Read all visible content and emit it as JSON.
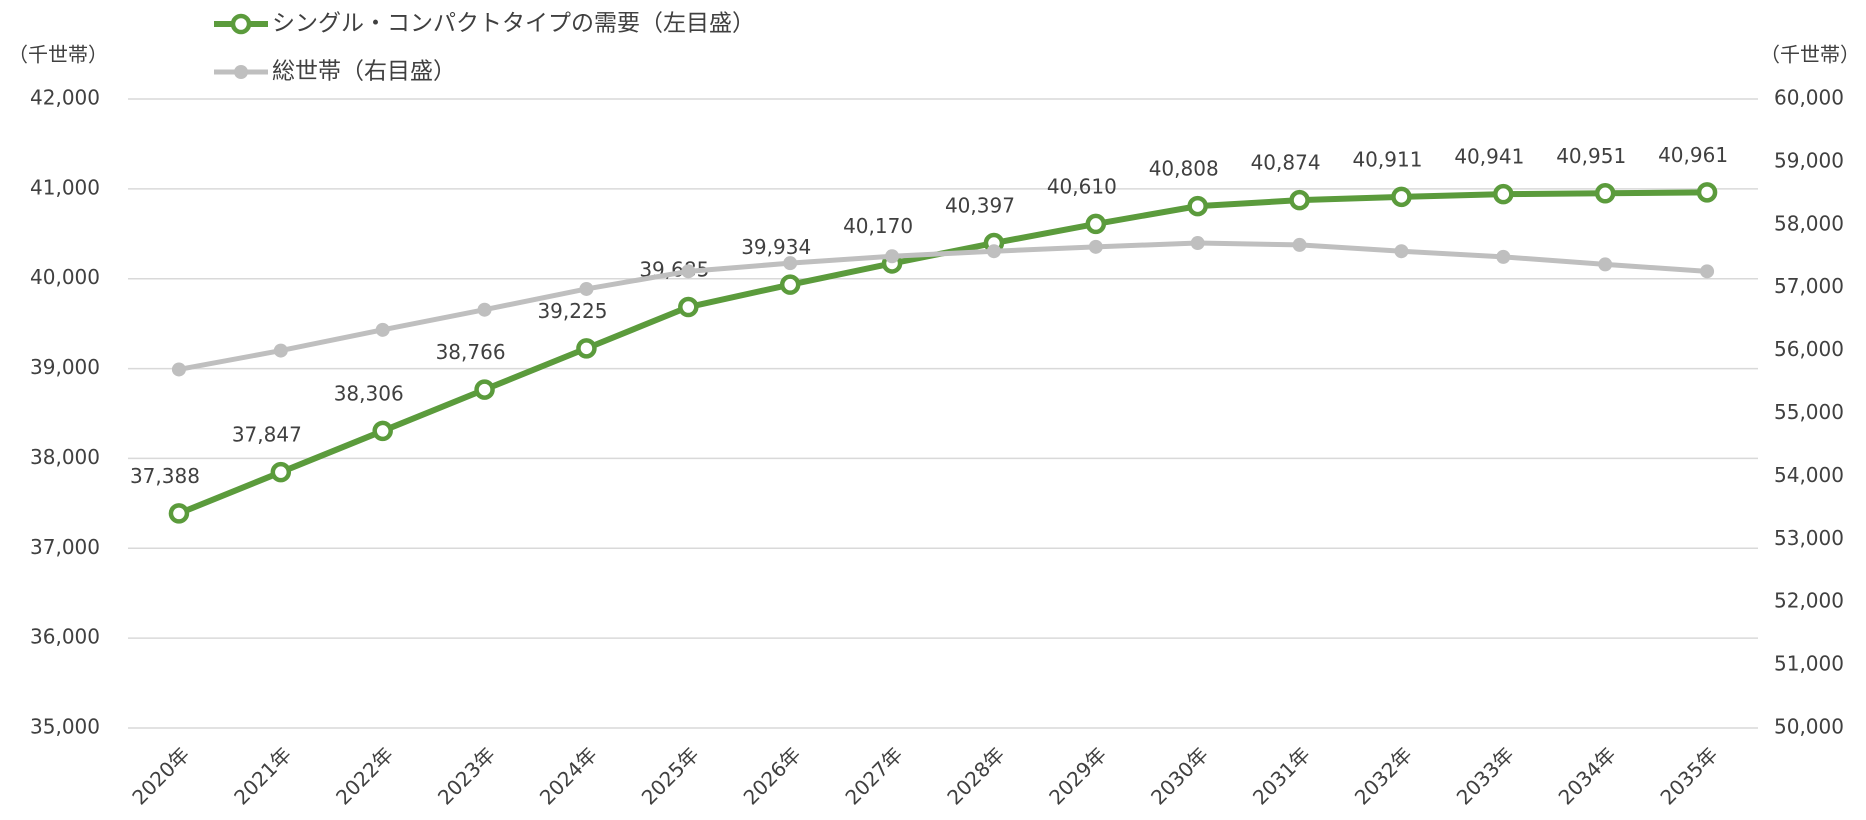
{
  "chart_data": {
    "type": "line",
    "categories": [
      "2020年",
      "2021年",
      "2022年",
      "2023年",
      "2024年",
      "2025年",
      "2026年",
      "2027年",
      "2028年",
      "2029年",
      "2030年",
      "2031年",
      "2032年",
      "2033年",
      "2034年",
      "2035年"
    ],
    "series": [
      {
        "name": "シングル・コンパクトタイプの需要（左目盛）",
        "color": "#5b9b3c",
        "axis": "y",
        "values": [
          37388,
          37847,
          38306,
          38766,
          39225,
          39685,
          39934,
          40170,
          40397,
          40610,
          40808,
          40874,
          40911,
          40941,
          40951,
          40961
        ],
        "value_labels": [
          "37,388",
          "37,847",
          "38,306",
          "38,766",
          "39,225",
          "39,685",
          "39,934",
          "40,170",
          "40,397",
          "40,610",
          "40,808",
          "40,874",
          "40,911",
          "40,941",
          "40,951",
          "40,961"
        ]
      },
      {
        "name": "総世帯（右目盛）",
        "color": "#bfbfbf",
        "axis": "y2",
        "values": [
          55700,
          56000,
          56330,
          56650,
          56980,
          57260,
          57390,
          57500,
          57580,
          57650,
          57710,
          57680,
          57580,
          57490,
          57370,
          57260
        ]
      }
    ],
    "ylabel": "（千世帯）",
    "y2label": "（千世帯）",
    "ylim": [
      35000,
      42000
    ],
    "yticks": [
      {
        "value": 35000,
        "label": "35,000"
      },
      {
        "value": 36000,
        "label": "36,000"
      },
      {
        "value": 37000,
        "label": "37,000"
      },
      {
        "value": 38000,
        "label": "38,000"
      },
      {
        "value": 39000,
        "label": "39,000"
      },
      {
        "value": 40000,
        "label": "40,000"
      },
      {
        "value": 41000,
        "label": "41,000"
      },
      {
        "value": 42000,
        "label": "42,000"
      }
    ],
    "y2lim": [
      50000,
      60000
    ],
    "y2ticks": [
      {
        "value": 50000,
        "label": "50,000"
      },
      {
        "value": 51000,
        "label": "51,000"
      },
      {
        "value": 52000,
        "label": "52,000"
      },
      {
        "value": 53000,
        "label": "53,000"
      },
      {
        "value": 54000,
        "label": "54,000"
      },
      {
        "value": 55000,
        "label": "55,000"
      },
      {
        "value": 56000,
        "label": "56,000"
      },
      {
        "value": 57000,
        "label": "57,000"
      },
      {
        "value": 58000,
        "label": "58,000"
      },
      {
        "value": 59000,
        "label": "59,000"
      },
      {
        "value": 60000,
        "label": "60,000"
      }
    ],
    "grid": true,
    "legend": "top-left"
  }
}
